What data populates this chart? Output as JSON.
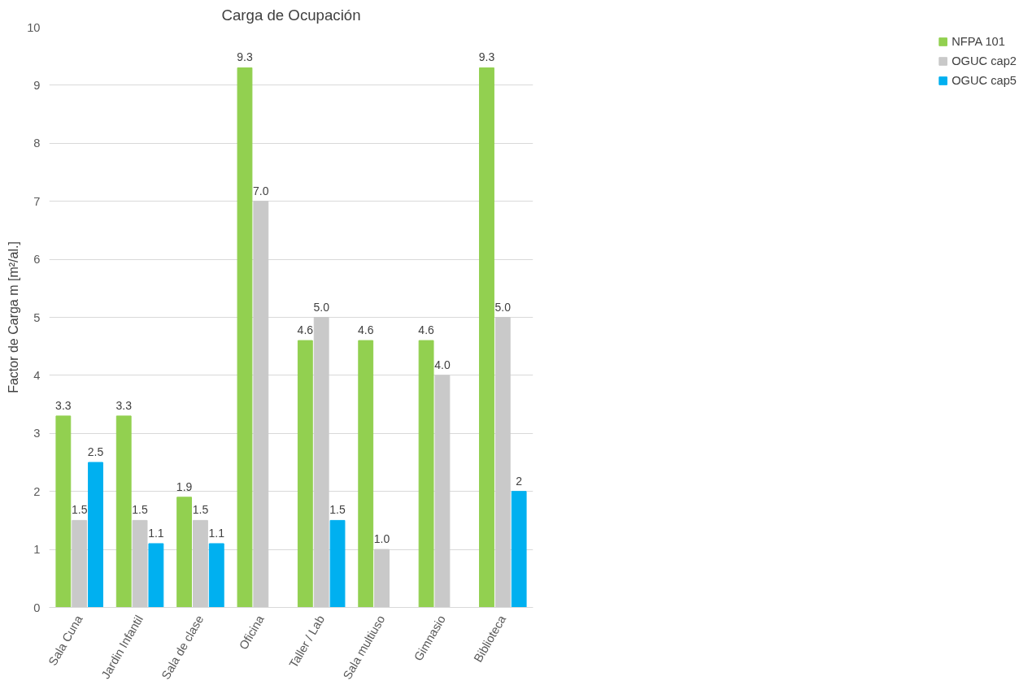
{
  "chart_data": {
    "type": "bar",
    "title": "Carga de Ocupación",
    "ylabel": "Factor de Carga m [m²/al.]",
    "categories": [
      "Sala Cuna",
      "Jardin Infantil",
      "Sala de clase",
      "Oficina",
      "Taller / Lab",
      "Sala multiuso",
      "Gimnasio",
      "Biblioteca"
    ],
    "series": [
      {
        "name": "NFPA 101",
        "color": "#92d050",
        "values": [
          3.3,
          3.3,
          1.9,
          9.3,
          4.6,
          4.6,
          4.6,
          9.3
        ],
        "value_labels": [
          "3.3",
          "3.3",
          "1.9",
          "9.3",
          "4.6",
          "4.6",
          "4.6",
          "9.3"
        ]
      },
      {
        "name": "OGUC cap2",
        "color": "#c9c9c9",
        "values": [
          1.5,
          1.5,
          1.5,
          7.0,
          5.0,
          1.0,
          4.0,
          5.0
        ],
        "value_labels": [
          "1.5",
          "1.5",
          "1.5",
          "7.0",
          "5.0",
          "1.0",
          "4.0",
          "5.0"
        ]
      },
      {
        "name": "OGUC cap5",
        "color": "#00b0f0",
        "values": [
          2.5,
          1.1,
          1.1,
          null,
          1.5,
          null,
          null,
          2
        ],
        "value_labels": [
          "2.5",
          "1.1",
          "1.1",
          null,
          "1.5",
          null,
          null,
          "2"
        ]
      }
    ],
    "ylim": [
      0,
      10
    ],
    "yticks": [
      0,
      1,
      2,
      3,
      4,
      5,
      6,
      7,
      8,
      9,
      10
    ],
    "grid": "y",
    "legend": "right"
  }
}
